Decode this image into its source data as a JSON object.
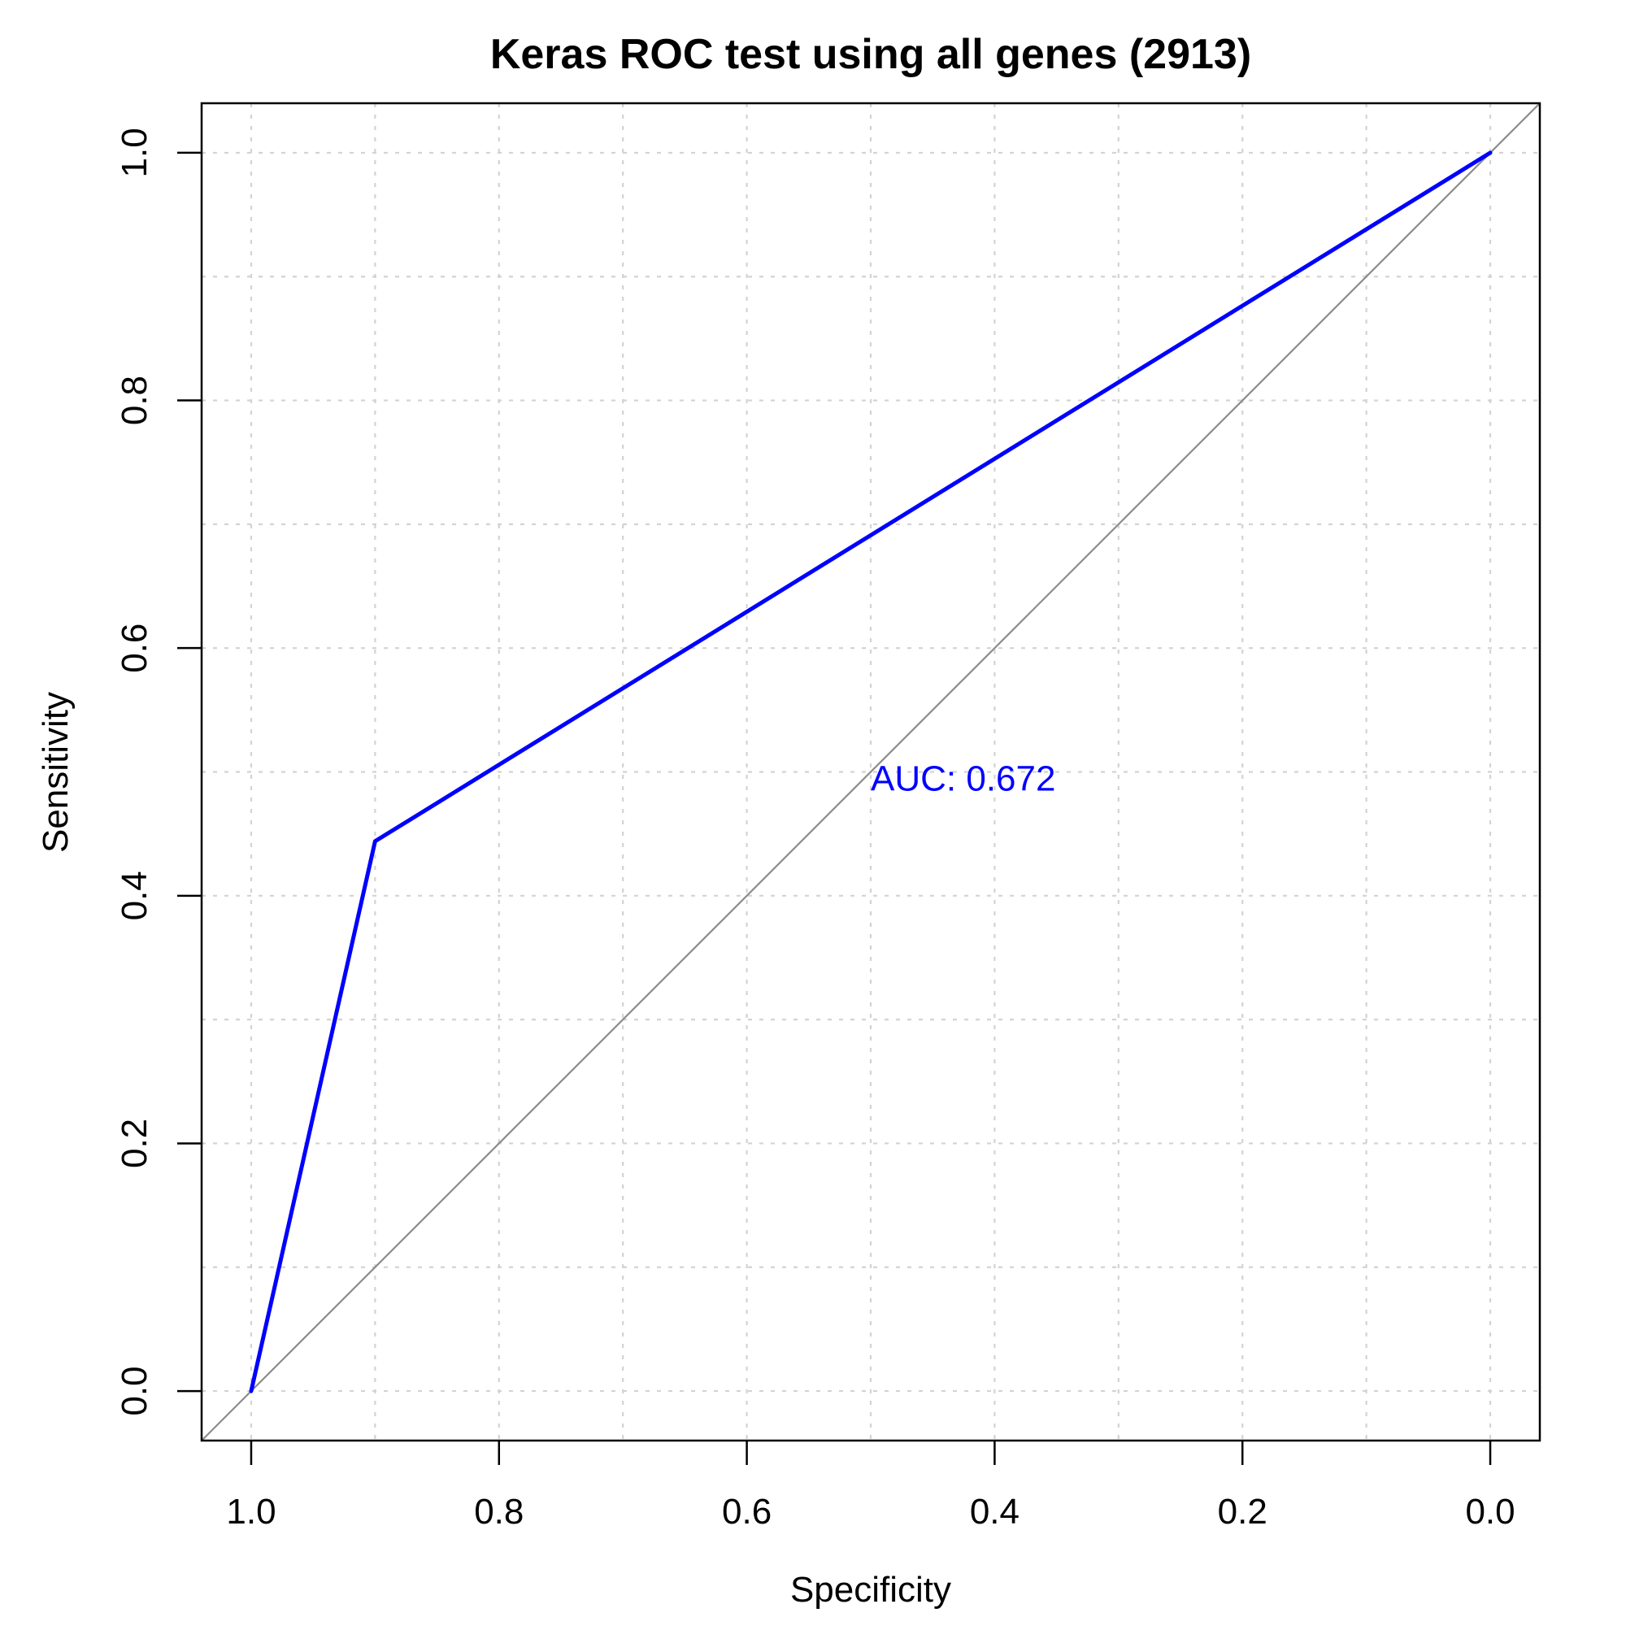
{
  "chart_data": {
    "type": "line",
    "title": "Keras ROC test using all genes (2913)",
    "xlabel": "Specificity",
    "ylabel": "Sensitivity",
    "x_reversed": true,
    "xlim": [
      1.04,
      -0.04
    ],
    "ylim": [
      -0.04,
      1.04
    ],
    "x_ticks": [
      1.0,
      0.8,
      0.6,
      0.4,
      0.2,
      0.0
    ],
    "x_tick_labels": [
      "1.0",
      "0.8",
      "0.6",
      "0.4",
      "0.2",
      "0.0"
    ],
    "y_ticks": [
      0.0,
      0.2,
      0.4,
      0.6,
      0.8,
      1.0
    ],
    "y_tick_labels": [
      "0.0",
      "0.2",
      "0.4",
      "0.6",
      "0.8",
      "1.0"
    ],
    "grid": true,
    "grid_x": [
      1.0,
      0.9,
      0.8,
      0.7,
      0.6,
      0.5,
      0.4,
      0.3,
      0.2,
      0.1,
      0.0
    ],
    "grid_y": [
      0.0,
      0.1,
      0.2,
      0.3,
      0.4,
      0.5,
      0.6,
      0.7,
      0.8,
      0.9,
      1.0
    ],
    "series": [
      {
        "x": [
          1.0,
          0.9,
          0.0
        ],
        "y": [
          0.0,
          0.444,
          1.0
        ],
        "color": "#0000ff"
      }
    ],
    "reference_line": {
      "from": [
        1.0,
        0.0
      ],
      "to": [
        0.0,
        1.0
      ],
      "color": "#8c8c8c"
    },
    "annotations": [
      {
        "text": "AUC: 0.672",
        "x": 0.5,
        "y": 0.485,
        "color": "#0000ff"
      }
    ]
  }
}
